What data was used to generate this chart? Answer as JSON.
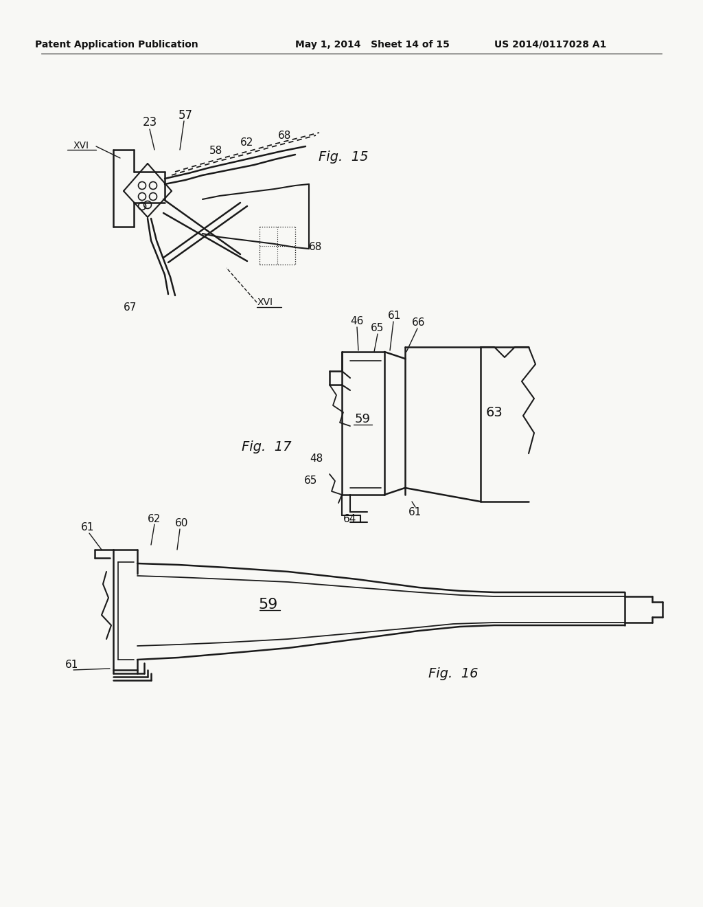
{
  "background_color": "#f8f8f5",
  "header_text": "Patent Application Publication",
  "header_date": "May 1, 2014   Sheet 14 of 15",
  "header_patent": "US 2014/0117028 A1",
  "fig15_label": "Fig.  15",
  "fig16_label": "Fig.  16",
  "fig17_label": "Fig.  17",
  "line_color": "#1a1a1a",
  "text_color": "#111111"
}
